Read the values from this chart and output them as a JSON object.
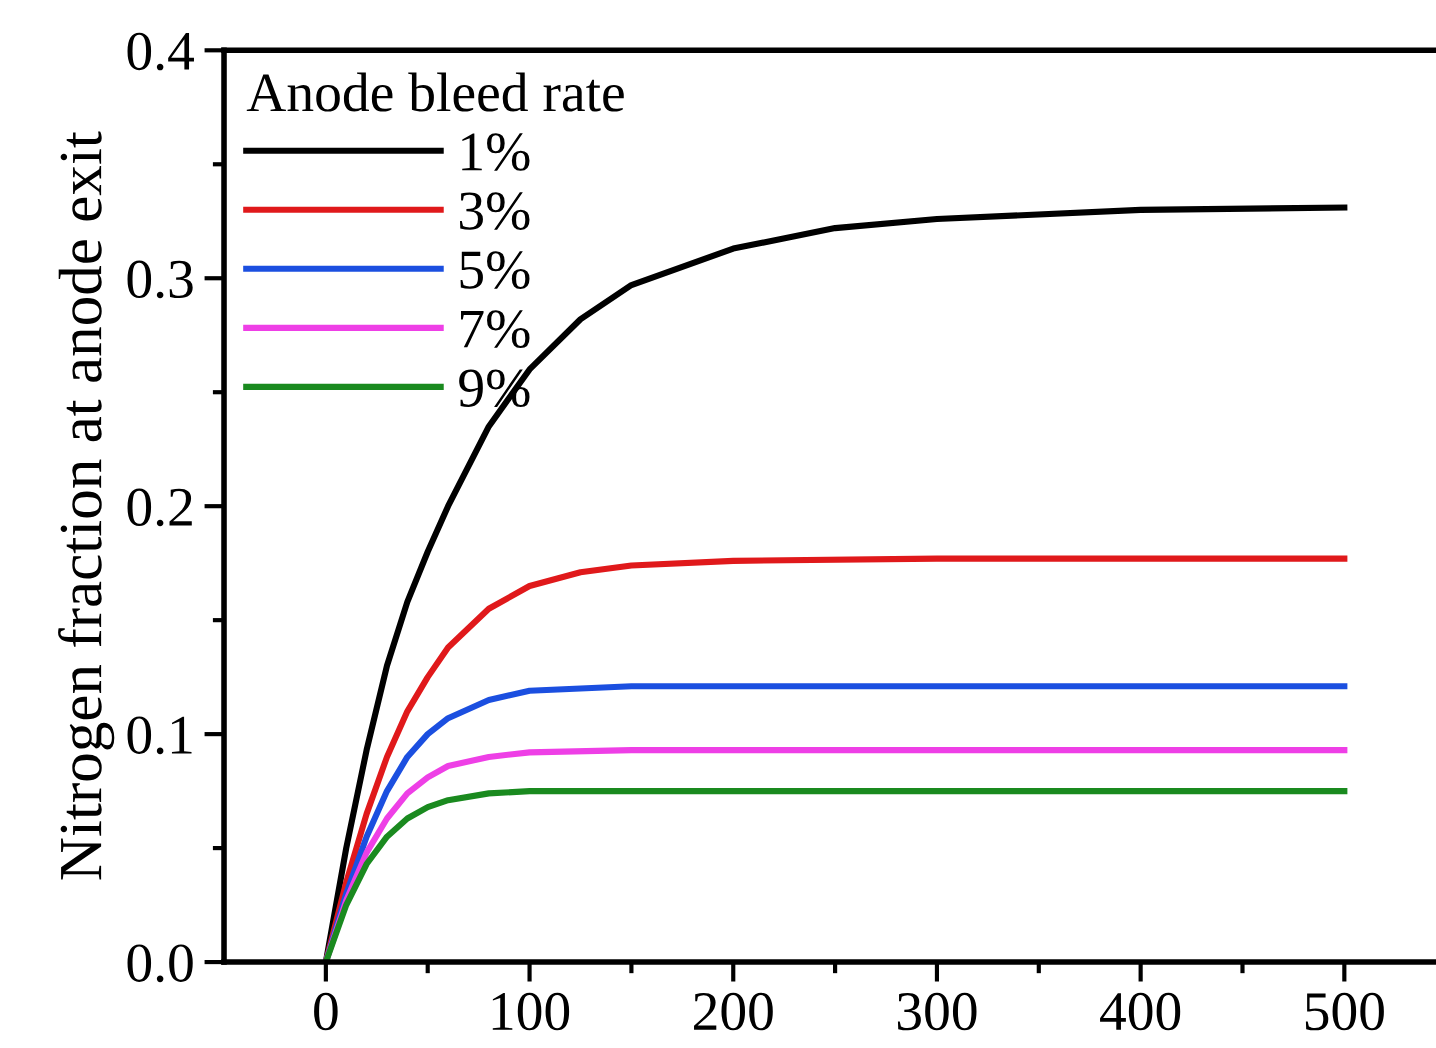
{
  "chart_data": {
    "type": "line",
    "ylabel": "Nitrogen fraction at anode exit",
    "legend_title": "Anode bleed rate",
    "legend": "top left",
    "grid": false,
    "line_style": "solid",
    "marker": "none",
    "xlim": [
      -50,
      545
    ],
    "ylim": [
      0,
      0.4
    ],
    "xticks": [
      0,
      {
        "value": 50,
        "label": null
      },
      100,
      {
        "value": 150,
        "label": null
      },
      200,
      {
        "value": 250,
        "label": null
      },
      300,
      {
        "value": 350,
        "label": null
      },
      400,
      {
        "value": 450,
        "label": null
      },
      500
    ],
    "yticks": [
      {
        "value": 0.0,
        "label": "0.0"
      },
      {
        "value": 0.05,
        "label": null
      },
      0.1,
      {
        "value": 0.15,
        "label": null
      },
      0.2,
      {
        "value": 0.25,
        "label": null
      },
      0.3,
      {
        "value": 0.35,
        "label": null
      },
      0.4
    ],
    "series": [
      {
        "name": "1%",
        "color": "#000000",
        "x": [
          0,
          10,
          20,
          30,
          40,
          50,
          60,
          80,
          100,
          125,
          150,
          200,
          250,
          300,
          400,
          500
        ],
        "values": [
          0,
          0.05,
          0.093,
          0.13,
          0.158,
          0.18,
          0.2,
          0.235,
          0.26,
          0.282,
          0.297,
          0.313,
          0.322,
          0.326,
          0.33,
          0.331
        ]
      },
      {
        "name": "3%",
        "color": "#e0191b",
        "x": [
          0,
          10,
          20,
          30,
          40,
          50,
          60,
          80,
          100,
          125,
          150,
          200,
          300,
          500
        ],
        "values": [
          0,
          0.035,
          0.065,
          0.09,
          0.11,
          0.125,
          0.138,
          0.155,
          0.165,
          0.171,
          0.174,
          0.176,
          0.177,
          0.177
        ]
      },
      {
        "name": "5%",
        "color": "#1b4fe0",
        "x": [
          0,
          10,
          20,
          30,
          40,
          50,
          60,
          80,
          100,
          150,
          500
        ],
        "values": [
          0,
          0.03,
          0.055,
          0.075,
          0.09,
          0.1,
          0.107,
          0.115,
          0.119,
          0.121,
          0.121
        ]
      },
      {
        "name": "7%",
        "color": "#ee3fe6",
        "x": [
          0,
          10,
          20,
          30,
          40,
          50,
          60,
          80,
          100,
          150,
          500
        ],
        "values": [
          0,
          0.027,
          0.048,
          0.063,
          0.074,
          0.081,
          0.086,
          0.09,
          0.092,
          0.093,
          0.093
        ]
      },
      {
        "name": "9%",
        "color": "#1a8a1f",
        "x": [
          0,
          10,
          20,
          30,
          40,
          50,
          60,
          80,
          100,
          500
        ],
        "values": [
          0,
          0.025,
          0.043,
          0.055,
          0.063,
          0.068,
          0.071,
          0.074,
          0.075,
          0.075
        ]
      }
    ]
  }
}
